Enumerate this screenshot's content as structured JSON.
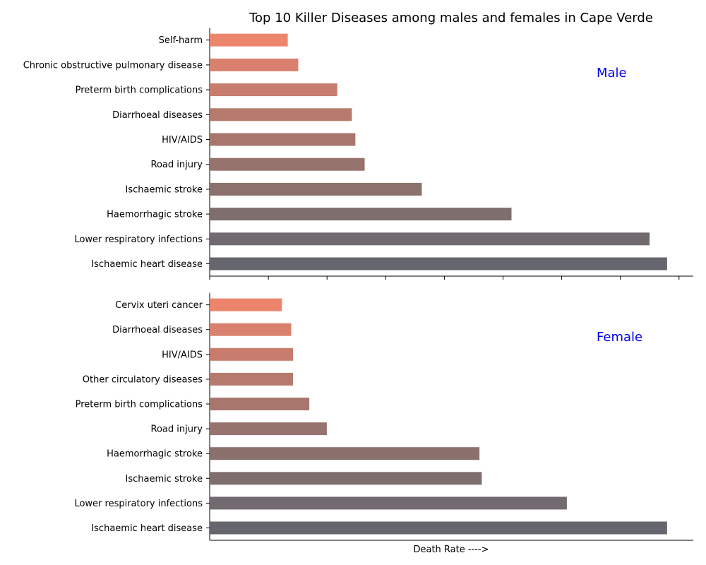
{
  "chart_data": {
    "type": "bar",
    "orientation": "horizontal",
    "title": "Top 10 Killer Diseases among males and females in Cape Verde",
    "xlabel": "Death Rate ---->",
    "xlim": [
      0,
      83
    ],
    "panels": [
      {
        "label": "Male",
        "categories": [
          "Ischaemic heart disease",
          "Lower respiratory infections",
          "Haemorrhagic stroke",
          "Ischaemic stroke",
          "Road injury",
          "HIV/AIDS",
          "Diarrhoeal diseases",
          "Preterm birth complications",
          "Chronic obstructive pulmonary disease",
          "Self-harm"
        ],
        "values": [
          78.5,
          75.5,
          51.8,
          36.4,
          26.6,
          25.0,
          24.4,
          21.9,
          15.2,
          13.4
        ]
      },
      {
        "label": "Female",
        "categories": [
          "Ischaemic heart disease",
          "Lower respiratory infections",
          "Ischaemic stroke",
          "Haemorrhagic stroke",
          "Road injury",
          "Preterm birth complications",
          "Other circulatory diseases",
          "HIV/AIDS",
          "Diarrhoeal diseases",
          "Cervix uteri cancer"
        ],
        "values": [
          78.5,
          61.3,
          46.7,
          46.3,
          20.1,
          17.1,
          14.3,
          14.3,
          14.0,
          12.4
        ]
      }
    ],
    "colors": [
      "#66666e",
      "#716a6f",
      "#7e6e6d",
      "#8a716d",
      "#97736d",
      "#a7766d",
      "#b57a6c",
      "#c87c6d",
      "#d9816e",
      "#ec856c"
    ],
    "grid": false,
    "panel_label_color": "#0000ee"
  }
}
